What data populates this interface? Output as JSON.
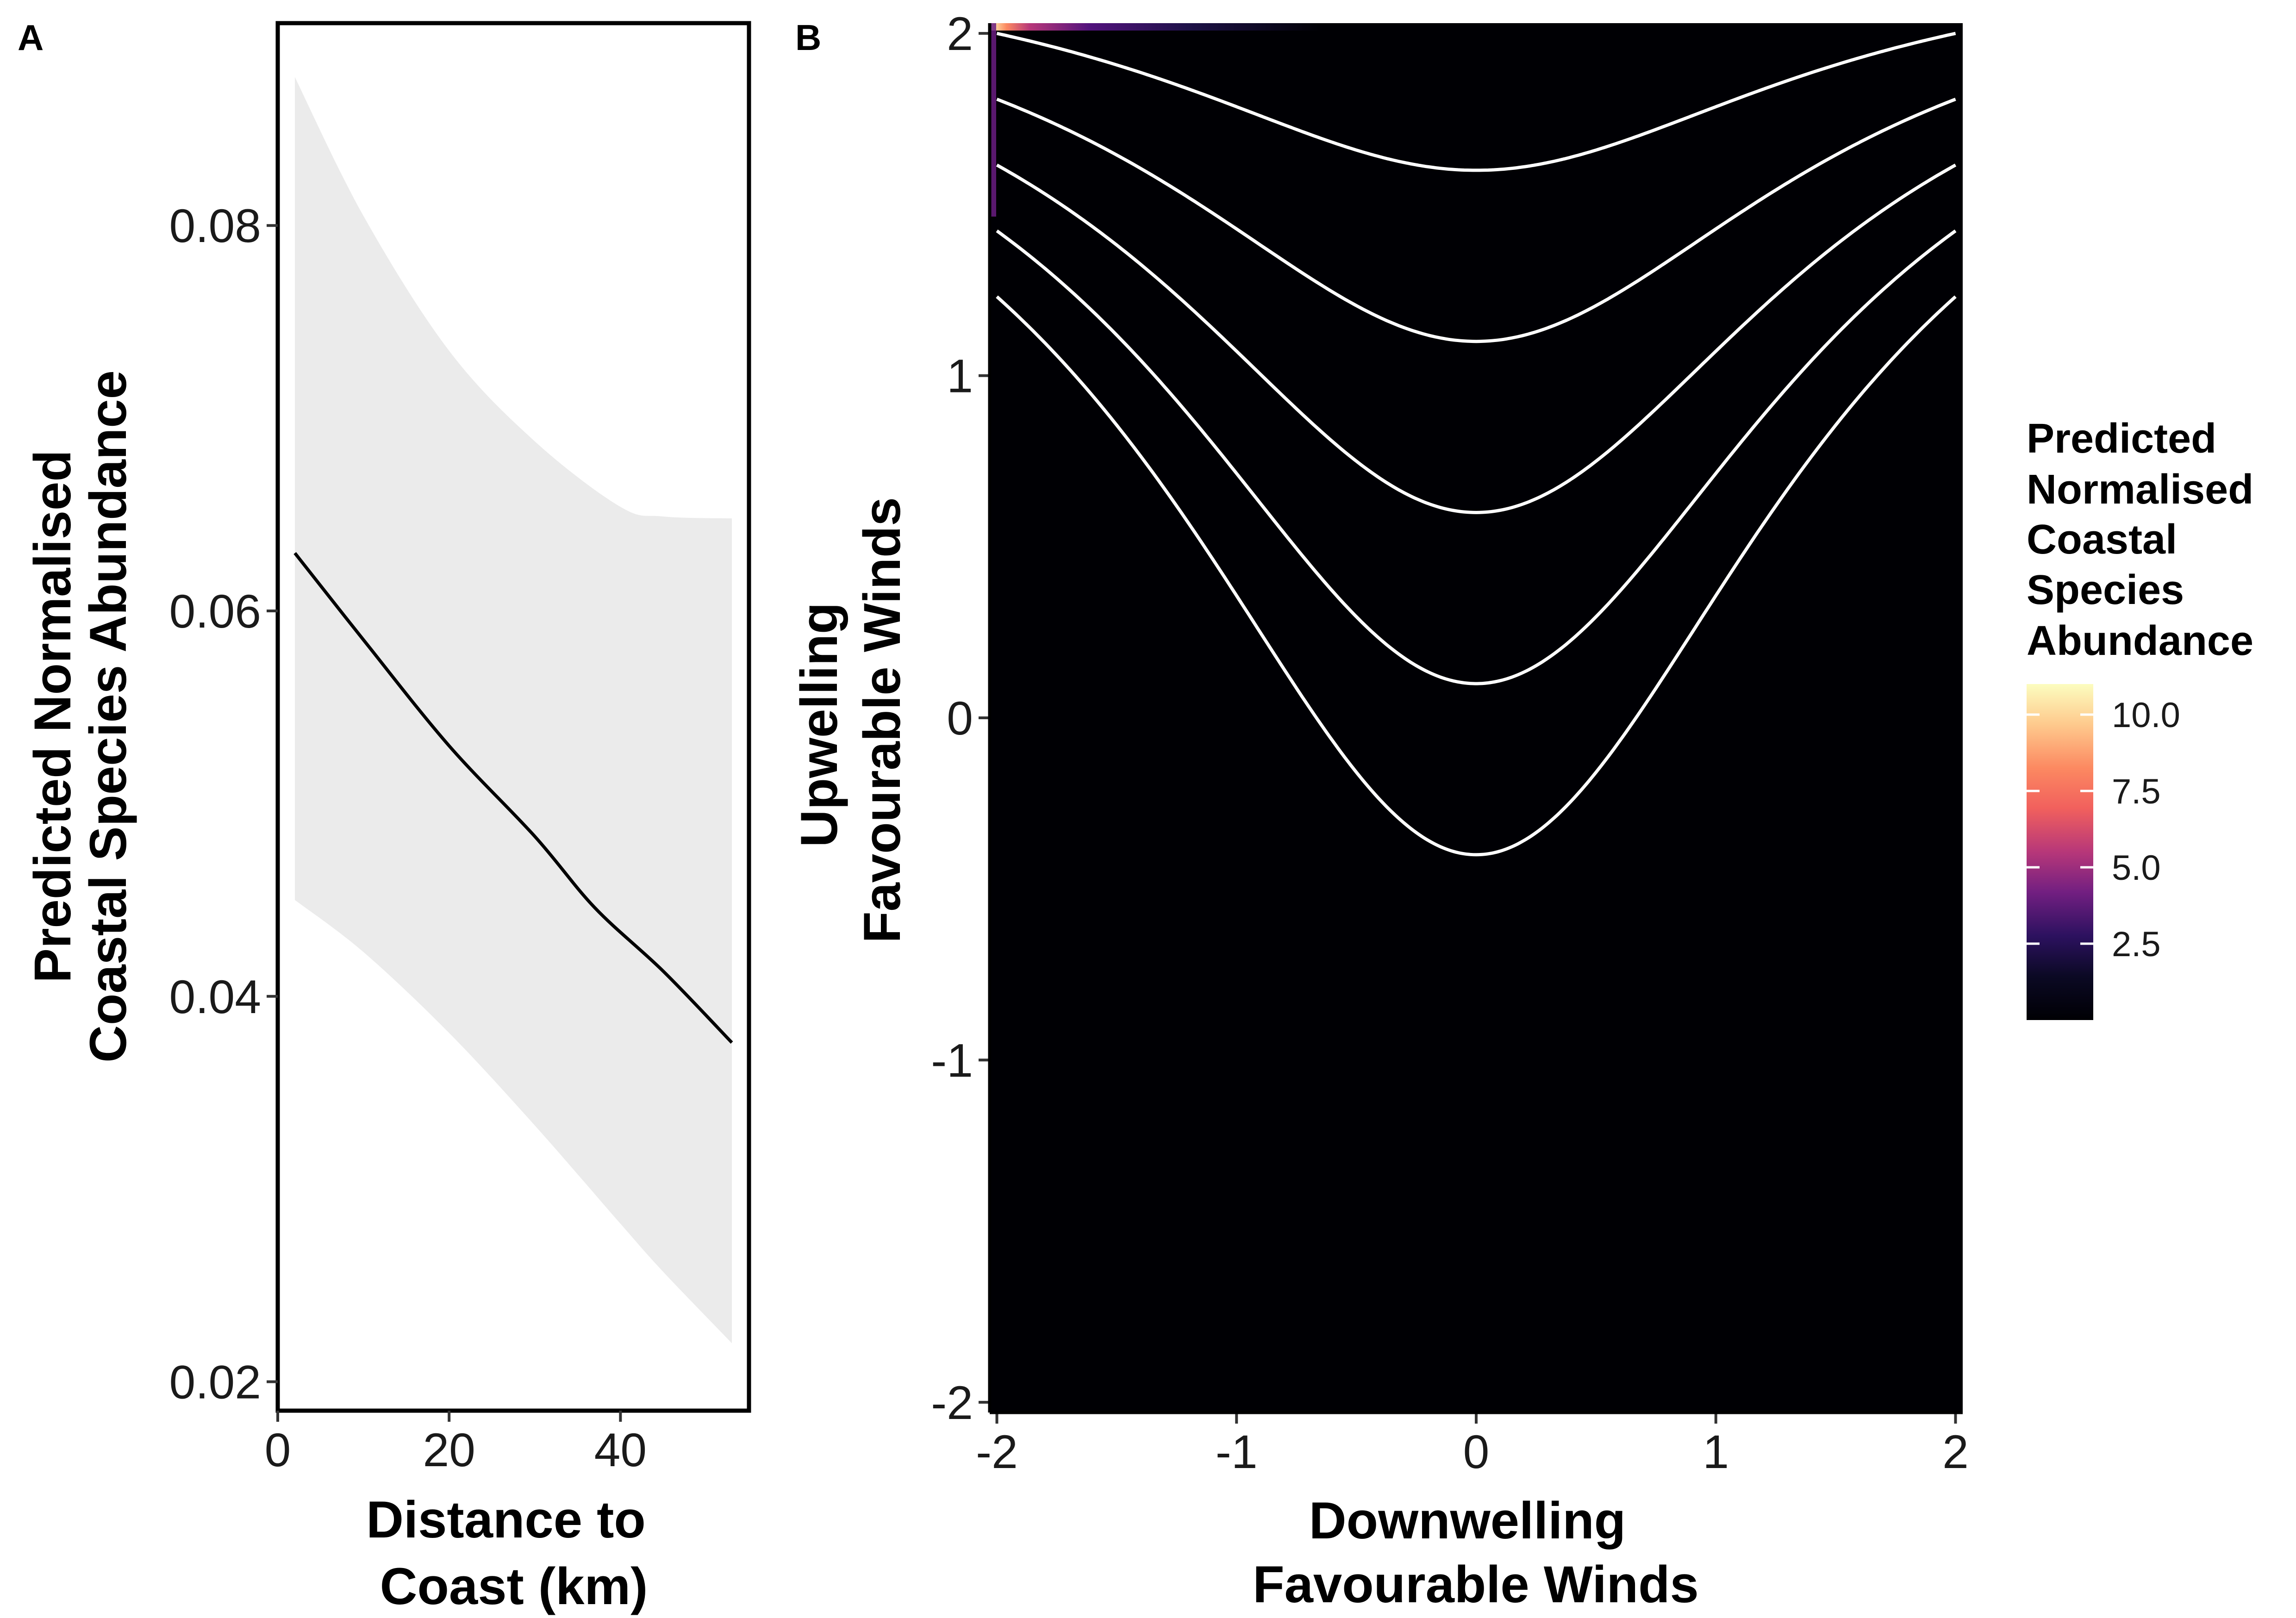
{
  "panel_labels": {
    "a": "A",
    "b": "B"
  },
  "chart_data": [
    {
      "type": "line",
      "panel": "A",
      "xlabel": [
        "Distance to",
        "Coast (km)"
      ],
      "ylabel": [
        "Predicted Normalised",
        "Coastal Species Abundance"
      ],
      "xlim": [
        0,
        55
      ],
      "ylim": [
        0.0185,
        0.0905
      ],
      "xticks": [
        0,
        20,
        40
      ],
      "xtick_labels": [
        "0",
        "20",
        "40"
      ],
      "yticks": [
        0.02,
        0.04,
        0.06,
        0.08
      ],
      "ytick_labels": [
        "0.02",
        "0.04",
        "0.06",
        "0.08"
      ],
      "grid": false,
      "series": [
        {
          "x": [
            2,
            10,
            20,
            30,
            37,
            45,
            53
          ],
          "y": [
            0.063,
            0.0585,
            0.053,
            0.0483,
            0.0446,
            0.0413,
            0.0376
          ]
        }
      ],
      "ci_band": {
        "x": [
          2,
          10,
          20,
          30,
          40,
          45,
          53
        ],
        "upper": [
          0.0877,
          0.0805,
          0.0735,
          0.0688,
          0.0654,
          0.0649,
          0.0648
        ],
        "lower": [
          0.045,
          0.0423,
          0.0381,
          0.0333,
          0.0282,
          0.0257,
          0.022
        ]
      },
      "colors": {
        "line": "#000000",
        "band": "#ebebeb"
      }
    },
    {
      "type": "heatmap",
      "panel": "B",
      "xlabel": [
        "Downwelling",
        "Favourable Winds"
      ],
      "ylabel": [
        "Upwelling",
        "Favourable Winds"
      ],
      "xlim": [
        -2.03,
        2.03
      ],
      "ylim": [
        -2.03,
        2.03
      ],
      "xticks": [
        -2,
        -1,
        0,
        1,
        2
      ],
      "xtick_labels": [
        "-2",
        "-1",
        "0",
        "1",
        "2"
      ],
      "yticks": [
        -2,
        -1,
        0,
        1,
        2
      ],
      "ytick_labels": [
        "-2",
        "-1",
        "0",
        "1",
        "2"
      ],
      "grid": false,
      "background_color": "#000004",
      "contour_color": "#ffffff",
      "surface": "z = 0.4 + 0.5*y - 0.45*x^2 + 0.2*x^2*y",
      "contour_levels": [
        0.2,
        0.45,
        0.7,
        0.95,
        1.2,
        1.45,
        1.7,
        1.95,
        2.2,
        2.45,
        2.7,
        2.95,
        3.2,
        3.45,
        3.7,
        3.95,
        4.2,
        4.45,
        4.7,
        4.95,
        5.2,
        5.45,
        5.7,
        5.95,
        6.2,
        6.45,
        6.7,
        6.95,
        7.2,
        7.45
      ],
      "legend": {
        "title": [
          "Predicted",
          "Normalised",
          "Coastal",
          "Species",
          "Abundance"
        ],
        "placement": "right",
        "colormap": "magma",
        "range": [
          0,
          11
        ],
        "ticks": [
          2.5,
          5.0,
          7.5,
          10.0
        ],
        "tick_labels": [
          "2.5",
          "5.0",
          "7.5",
          "10.0"
        ]
      }
    }
  ]
}
